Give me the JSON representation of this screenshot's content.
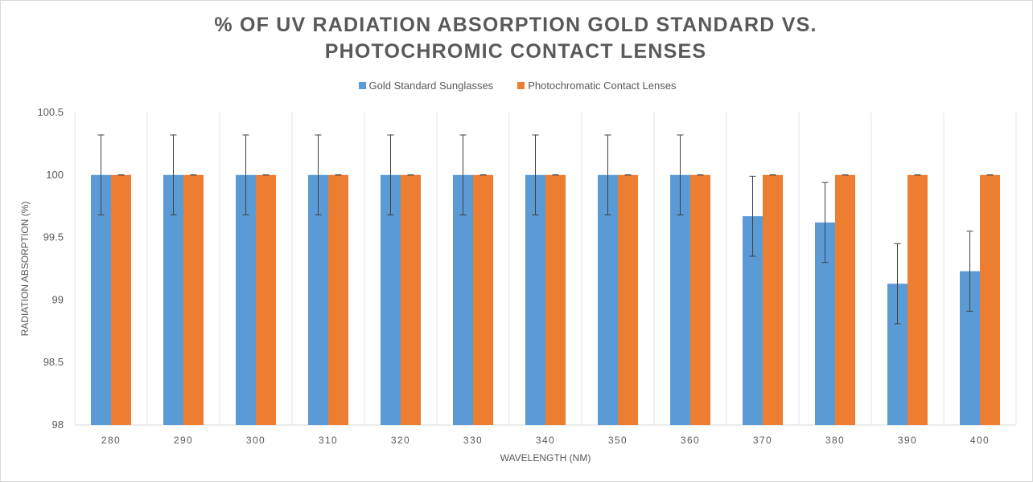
{
  "chart_data": {
    "type": "bar",
    "title": "% OF UV RADIATION ABSORPTION GOLD STANDARD VS. PHOTOCHROMIC CONTACT LENSES",
    "xlabel": "WAVELENGTH (NM)",
    "ylabel": "RADIATION ABSORPTION (%)",
    "ylim": [
      98,
      100.5
    ],
    "yticks": [
      "98",
      "98.5",
      "99",
      "99.5",
      "100",
      "100.5"
    ],
    "categories": [
      "280",
      "290",
      "300",
      "310",
      "320",
      "330",
      "340",
      "350",
      "360",
      "370",
      "380",
      "390",
      "400"
    ],
    "series": [
      {
        "name": "Gold Standard Sunglasses",
        "color": "#5b9bd5",
        "values": [
          100,
          100,
          100,
          100,
          100,
          100,
          100,
          100,
          100,
          99.67,
          99.62,
          99.13,
          99.23
        ],
        "error": [
          0.32,
          0.32,
          0.32,
          0.32,
          0.32,
          0.32,
          0.32,
          0.32,
          0.32,
          0.32,
          0.32,
          0.32,
          0.32
        ]
      },
      {
        "name": "Photochromatic Contact Lenses",
        "color": "#ed7d31",
        "values": [
          100,
          100,
          100,
          100,
          100,
          100,
          100,
          100,
          100,
          100,
          100,
          100,
          100
        ],
        "error": [
          0,
          0,
          0,
          0,
          0,
          0,
          0,
          0,
          0,
          0,
          0,
          0,
          0
        ]
      }
    ],
    "grid": "vertical",
    "legend": "top-center"
  }
}
